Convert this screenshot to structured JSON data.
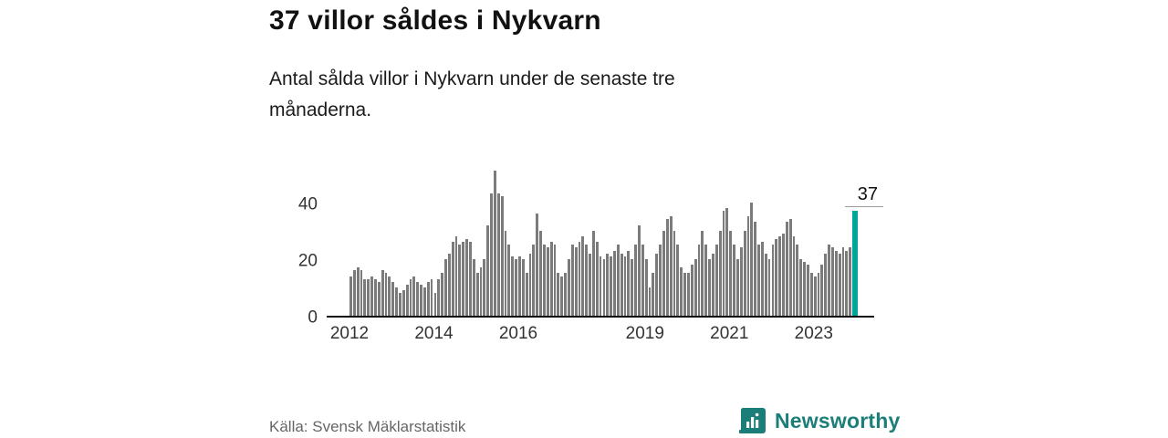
{
  "header": {
    "title": "37 villor såldes i Nykvarn",
    "subtitle": "Antal sålda villor i Nykvarn under de senaste tre månaderna."
  },
  "footer": {
    "source": "Källa: Svensk Mäklarstatistik",
    "brand": "Newsworthy",
    "brand_color": "#1b7e78"
  },
  "chart_data": {
    "type": "bar",
    "title": "37 villor såldes i Nykvarn",
    "subtitle": "Antal sålda villor i Nykvarn under de senaste tre månaderna.",
    "xlabel": "",
    "ylabel": "",
    "ylim": [
      0,
      55
    ],
    "yticks": [
      0,
      20,
      40
    ],
    "start_year": 2012,
    "x_frequency": "monthly",
    "xticks": [
      "2012",
      "2014",
      "2016",
      "2019",
      "2021",
      "2023"
    ],
    "grid": false,
    "legend": false,
    "bar_color": "#7b7b7b",
    "highlight_color": "#00a59a",
    "annotation": {
      "label": "37",
      "value": 37
    },
    "values": [
      14,
      16,
      17,
      16,
      13,
      13,
      14,
      13,
      12,
      16,
      15,
      14,
      12,
      10,
      8,
      9,
      11,
      13,
      14,
      12,
      11,
      10,
      12,
      13,
      8,
      13,
      15,
      20,
      22,
      26,
      28,
      25,
      26,
      27,
      26,
      20,
      15,
      17,
      20,
      32,
      43,
      51,
      43,
      42,
      30,
      25,
      21,
      20,
      21,
      20,
      15,
      22,
      25,
      36,
      30,
      25,
      24,
      26,
      25,
      15,
      14,
      15,
      20,
      25,
      24,
      26,
      28,
      25,
      22,
      30,
      26,
      21,
      20,
      22,
      21,
      23,
      25,
      22,
      21,
      23,
      20,
      25,
      32,
      25,
      20,
      10,
      15,
      22,
      25,
      30,
      34,
      35,
      30,
      25,
      17,
      15,
      15,
      18,
      20,
      25,
      30,
      25,
      20,
      22,
      25,
      30,
      37,
      38,
      30,
      25,
      20,
      24,
      30,
      35,
      40,
      33,
      25,
      26,
      22,
      20,
      25,
      27,
      28,
      29,
      33,
      34,
      28,
      25,
      20,
      19,
      18,
      15,
      14,
      15,
      18,
      22,
      25,
      24,
      23,
      22,
      24,
      23,
      24,
      37
    ]
  }
}
